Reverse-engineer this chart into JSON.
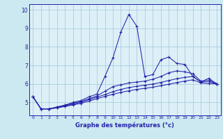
{
  "title": "",
  "xlabel": "Graphe des températures (°c)",
  "ylabel": "",
  "bg_color": "#cce8f0",
  "plot_bg_color": "#ddf0f8",
  "line_color": "#2222aa",
  "grid_color": "#aaccdd",
  "axis_bar_color": "#1a1aaa",
  "xlim": [
    -0.5,
    23.5
  ],
  "ylim": [
    4.3,
    10.3
  ],
  "yticks": [
    5,
    6,
    7,
    8,
    9,
    10
  ],
  "xticks": [
    0,
    1,
    2,
    3,
    4,
    5,
    6,
    7,
    8,
    9,
    10,
    11,
    12,
    13,
    14,
    15,
    16,
    17,
    18,
    19,
    20,
    21,
    22,
    23
  ],
  "series": [
    [
      5.3,
      4.65,
      4.65,
      4.75,
      4.85,
      5.0,
      5.1,
      5.3,
      5.45,
      6.4,
      7.4,
      8.8,
      9.75,
      9.1,
      6.4,
      6.5,
      7.3,
      7.45,
      7.1,
      7.05,
      6.4,
      6.1,
      6.3,
      6.0
    ],
    [
      5.3,
      4.65,
      4.65,
      4.75,
      4.85,
      4.95,
      5.05,
      5.2,
      5.35,
      5.6,
      5.85,
      5.95,
      6.05,
      6.1,
      6.15,
      6.25,
      6.4,
      6.6,
      6.7,
      6.65,
      6.55,
      6.15,
      6.2,
      6.0
    ],
    [
      5.3,
      4.65,
      4.65,
      4.72,
      4.82,
      4.91,
      5.0,
      5.15,
      5.28,
      5.42,
      5.58,
      5.7,
      5.8,
      5.87,
      5.93,
      5.99,
      6.08,
      6.18,
      6.28,
      6.35,
      6.4,
      6.1,
      6.12,
      6.0
    ],
    [
      5.3,
      4.65,
      4.65,
      4.7,
      4.78,
      4.86,
      4.95,
      5.07,
      5.2,
      5.32,
      5.44,
      5.54,
      5.63,
      5.7,
      5.76,
      5.82,
      5.9,
      5.98,
      6.07,
      6.15,
      6.22,
      6.05,
      6.02,
      6.0
    ]
  ]
}
